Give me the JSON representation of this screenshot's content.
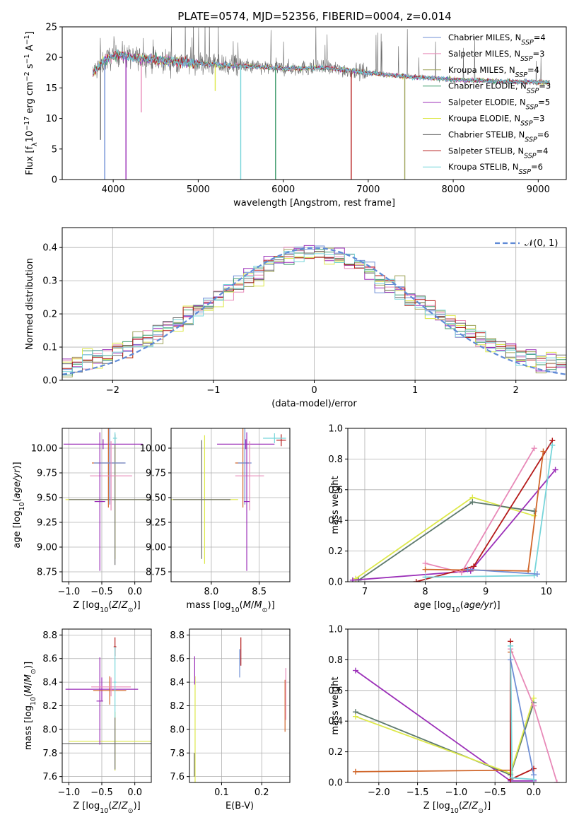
{
  "figure_title": "PLATE=0574, MJD=52356, FIBERID=0004, z=0.014",
  "palette": [
    "#6f8fd6",
    "#e889b8",
    "#9ea35a",
    "#3d9a6a",
    "#9b2fb8",
    "#dde84a",
    "#6b6b6b",
    "#b51a1a",
    "#77d5da"
  ],
  "chart_data": [
    {
      "id": "spectrum",
      "type": "line",
      "title": "PLATE=0574, MJD=52356, FIBERID=0004, z=0.014",
      "xlabel": "wavelength [Angstrom, rest frame]",
      "ylabel": "Flux [f_λ10^-17 erg cm^-2 s^-1 A^-1]",
      "xlim": [
        3400,
        9330
      ],
      "ylim": [
        0,
        25
      ],
      "xticks": [
        4000,
        5000,
        6000,
        7000,
        8000,
        9000
      ],
      "yticks": [
        0,
        5,
        10,
        15,
        20,
        25
      ],
      "legend_position": "top-right",
      "legend": [
        {
          "label": "Chabrier MILES, N",
          "sub": "SSP",
          "tail": "=4"
        },
        {
          "label": "Salpeter MILES, N",
          "sub": "SSP",
          "tail": "=3"
        },
        {
          "label": "Kroupa MILES, N",
          "sub": "SSP",
          "tail": "=4"
        },
        {
          "label": "Chabrier ELODIE, N",
          "sub": "SSP",
          "tail": "=3"
        },
        {
          "label": "Salpeter ELODIE, N",
          "sub": "SSP",
          "tail": "=5"
        },
        {
          "label": "Kroupa ELODIE, N",
          "sub": "SSP",
          "tail": "=3"
        },
        {
          "label": "Chabrier STELIB, N",
          "sub": "SSP",
          "tail": "=6"
        },
        {
          "label": "Salpeter STELIB, N",
          "sub": "SSP",
          "tail": "=4"
        },
        {
          "label": "Kroupa STELIB, N",
          "sub": "SSP",
          "tail": "=6"
        }
      ],
      "wavelength_range": [
        3760,
        9140
      ],
      "continuum": [
        [
          3760,
          17.5
        ],
        [
          3900,
          19.5
        ],
        [
          4050,
          20.5
        ],
        [
          4300,
          19.8
        ],
        [
          4600,
          19.5
        ],
        [
          5000,
          19.0
        ],
        [
          5500,
          18.6
        ],
        [
          6000,
          18.2
        ],
        [
          6500,
          18.3
        ],
        [
          7000,
          17.5
        ],
        [
          7500,
          16.8
        ],
        [
          8000,
          16.4
        ],
        [
          8500,
          16.1
        ],
        [
          9140,
          15.9
        ]
      ],
      "dips": [
        {
          "x": 3900,
          "to": 0
        },
        {
          "x": 4150,
          "to": 0
        },
        {
          "x": 5500,
          "to": 0
        },
        {
          "x": 5910,
          "to": 0
        },
        {
          "x": 6800,
          "to": 0
        },
        {
          "x": 7430,
          "to": 0
        },
        {
          "x": 3850,
          "to": 6.5
        },
        {
          "x": 4330,
          "to": 11
        },
        {
          "x": 5200,
          "to": 14.5
        }
      ]
    },
    {
      "id": "residuals",
      "type": "line",
      "xlabel": "(data-model)/error",
      "ylabel": "Normed distribution",
      "xlim": [
        -2.5,
        2.5
      ],
      "ylim": [
        0,
        0.46
      ],
      "xticks": [
        -2,
        -1,
        0,
        1,
        2
      ],
      "yticks": [
        0.0,
        0.1,
        0.2,
        0.3,
        0.4
      ],
      "grid": true,
      "legend_position": "top-right",
      "reference_curve": {
        "label": "𝒩(0, 1)",
        "mean": 0,
        "sigma": 1,
        "color": "#5f8ad6"
      }
    },
    {
      "id": "age-vs-Z",
      "type": "scatter",
      "xlabel": "Z [log10(Z/Z⊙)]",
      "ylabel": "age  [log10(age/yr)]",
      "xlim": [
        -1.1,
        0.25
      ],
      "ylim": [
        8.65,
        10.2
      ],
      "xticks": [
        -1.0,
        -0.5,
        0.0
      ],
      "yticks": [
        8.75,
        9.0,
        9.25,
        9.5,
        9.75,
        10.0
      ],
      "grid": true,
      "points": [
        {
          "x": -0.3,
          "y": 9.48,
          "xerr": 0.75,
          "yerr": 0.6,
          "color": "#dde84a"
        },
        {
          "x": -0.3,
          "y": 9.48,
          "xerr": 0.7,
          "yerr": 0.66,
          "color": "#6b6b6b"
        },
        {
          "x": -0.48,
          "y": 10.04,
          "xerr": 0.6,
          "yerr": 0.05,
          "color": "#9b2fb8"
        },
        {
          "x": -0.4,
          "y": 9.85,
          "xerr": 0.25,
          "yerr": 0.45,
          "color": "#d0662a"
        },
        {
          "x": -0.38,
          "y": 9.85,
          "xerr": 0.24,
          "yerr": 0.42,
          "color": "#6f8fd6"
        },
        {
          "x": -0.36,
          "y": 9.72,
          "xerr": 0.32,
          "yerr": 0.35,
          "color": "#e889b8"
        },
        {
          "x": -0.53,
          "y": 9.46,
          "xerr": 0.08,
          "yerr": 0.7,
          "color": "#9b2fb8"
        },
        {
          "x": -0.3,
          "y": 10.1,
          "xerr": 0.03,
          "yerr": 0.06,
          "color": "#77d5da"
        }
      ]
    },
    {
      "id": "age-vs-mass",
      "type": "scatter",
      "xlabel": "mass [log10(M/M⊙)]",
      "ylabel": "",
      "xlim": [
        7.58,
        8.82
      ],
      "ylim": [
        8.65,
        10.2
      ],
      "xticks": [
        8.0,
        8.5
      ],
      "yticks": [
        8.75,
        9.0,
        9.25,
        9.5,
        9.75,
        10.0
      ],
      "grid": true,
      "points": [
        {
          "x": 7.93,
          "y": 9.48,
          "xerr": 0.35,
          "yerr": 0.65,
          "color": "#dde84a"
        },
        {
          "x": 7.9,
          "y": 9.48,
          "xerr": 0.3,
          "yerr": 0.6,
          "color": "#6b6b6b"
        },
        {
          "x": 8.36,
          "y": 10.04,
          "xerr": 0.3,
          "yerr": 0.05,
          "color": "#9b2fb8"
        },
        {
          "x": 8.33,
          "y": 9.85,
          "xerr": 0.08,
          "yerr": 0.45,
          "color": "#d0662a"
        },
        {
          "x": 8.35,
          "y": 9.85,
          "xerr": 0.07,
          "yerr": 0.42,
          "color": "#6f8fd6"
        },
        {
          "x": 8.4,
          "y": 9.72,
          "xerr": 0.15,
          "yerr": 0.35,
          "color": "#e889b8"
        },
        {
          "x": 8.37,
          "y": 9.46,
          "xerr": 0.03,
          "yerr": 0.7,
          "color": "#9b2fb8"
        },
        {
          "x": 8.73,
          "y": 10.08,
          "xerr": 0.05,
          "yerr": 0.06,
          "color": "#b51a1a"
        },
        {
          "x": 8.66,
          "y": 10.1,
          "xerr": 0.12,
          "yerr": 0.05,
          "color": "#77d5da"
        }
      ]
    },
    {
      "id": "mass-weight-vs-age",
      "type": "line",
      "xlabel": "age  [log10(age/yr)]",
      "ylabel": "mass weight",
      "xlim": [
        6.72,
        10.33
      ],
      "ylim": [
        0,
        1.0
      ],
      "xticks": [
        7,
        8,
        9,
        10
      ],
      "yticks": [
        0.0,
        0.2,
        0.4,
        0.6,
        0.8,
        1.0
      ],
      "grid": true,
      "series": [
        {
          "color": "#dde84a",
          "points": [
            [
              6.85,
              0.02
            ],
            [
              8.78,
              0.55
            ],
            [
              9.8,
              0.43
            ]
          ]
        },
        {
          "color": "#5e7a6e",
          "points": [
            [
              6.9,
              0.01
            ],
            [
              8.78,
              0.52
            ],
            [
              9.8,
              0.46
            ]
          ]
        },
        {
          "color": "#9b2fb8",
          "points": [
            [
              6.8,
              0.01
            ],
            [
              8.75,
              0.07
            ],
            [
              10.15,
              0.73
            ]
          ]
        },
        {
          "color": "#b51a1a",
          "points": [
            [
              7.85,
              0.0
            ],
            [
              8.8,
              0.1
            ],
            [
              10.1,
              0.92
            ]
          ]
        },
        {
          "color": "#e889b8",
          "points": [
            [
              8.0,
              0.12
            ],
            [
              8.6,
              0.06
            ],
            [
              9.8,
              0.87
            ]
          ]
        },
        {
          "color": "#d0662a",
          "points": [
            [
              8.0,
              0.08
            ],
            [
              9.7,
              0.07
            ],
            [
              9.95,
              0.85
            ]
          ]
        },
        {
          "color": "#77d5da",
          "points": [
            [
              8.0,
              0.03
            ],
            [
              9.8,
              0.04
            ],
            [
              10.1,
              0.89
            ]
          ]
        },
        {
          "color": "#6f8fd6",
          "points": [
            [
              8.7,
              0.08
            ],
            [
              9.85,
              0.05
            ]
          ]
        }
      ]
    },
    {
      "id": "mass-vs-Z",
      "type": "scatter",
      "xlabel": "Z [log10(Z/Z⊙)]",
      "ylabel": "mass [log10(M/M⊙)]",
      "xlim": [
        -1.1,
        0.25
      ],
      "ylim": [
        7.55,
        8.85
      ],
      "xticks": [
        -1.0,
        -0.5,
        0.0
      ],
      "yticks": [
        7.6,
        7.8,
        8.0,
        8.2,
        8.4,
        8.6,
        8.8
      ],
      "grid": true,
      "points": [
        {
          "x": -0.3,
          "y": 7.9,
          "xerr": 0.7,
          "yerr": 0.25,
          "color": "#dde84a"
        },
        {
          "x": -0.3,
          "y": 7.88,
          "xerr": 0.8,
          "yerr": 0.22,
          "color": "#6b6b6b"
        },
        {
          "x": -0.5,
          "y": 8.34,
          "xerr": 0.55,
          "yerr": 0.1,
          "color": "#9b2fb8"
        },
        {
          "x": -0.53,
          "y": 8.24,
          "xerr": 0.05,
          "yerr": 0.37,
          "color": "#9b2fb8"
        },
        {
          "x": -0.38,
          "y": 8.33,
          "xerr": 0.25,
          "yerr": 0.12,
          "color": "#d0662a"
        },
        {
          "x": -0.36,
          "y": 8.36,
          "xerr": 0.3,
          "yerr": 0.08,
          "color": "#e889b8"
        },
        {
          "x": -0.3,
          "y": 8.7,
          "xerr": 0.02,
          "yerr": 0.08,
          "color": "#b51a1a"
        },
        {
          "x": -0.3,
          "y": 8.4,
          "xerr": 0.02,
          "yerr": 0.3,
          "color": "#77d5da"
        }
      ]
    },
    {
      "id": "mass-vs-EBV",
      "type": "scatter",
      "xlabel": "E(B-V)",
      "ylabel": "",
      "xlim": [
        0.02,
        0.27
      ],
      "ylim": [
        7.55,
        8.85
      ],
      "xticks": [
        0.1,
        0.2
      ],
      "yticks": [
        7.6,
        7.8,
        8.0,
        8.2,
        8.4,
        8.6,
        8.8
      ],
      "grid": true,
      "points": [
        {
          "x": 0.034,
          "y": 8.0,
          "xerr": 0,
          "yerr": 0.45,
          "color": "#dde84a"
        },
        {
          "x": 0.032,
          "y": 7.7,
          "xerr": 0,
          "yerr": 0.1,
          "color": "#6b6b6b"
        },
        {
          "x": 0.033,
          "y": 8.5,
          "xerr": 0,
          "yerr": 0.12,
          "color": "#9b2fb8"
        },
        {
          "x": 0.145,
          "y": 8.56,
          "xerr": 0,
          "yerr": 0.12,
          "color": "#6f8fd6"
        },
        {
          "x": 0.148,
          "y": 8.66,
          "xerr": 0,
          "yerr": 0.12,
          "color": "#b51a1a"
        },
        {
          "x": 0.258,
          "y": 8.2,
          "xerr": 0,
          "yerr": 0.22,
          "color": "#d0662a"
        },
        {
          "x": 0.26,
          "y": 8.3,
          "xerr": 0,
          "yerr": 0.22,
          "color": "#e889b8"
        }
      ]
    },
    {
      "id": "mass-weight-vs-Z",
      "type": "line",
      "xlabel": "Z [log10(Z/Z⊙)]",
      "ylabel": "mass weight",
      "xlim": [
        -2.4,
        0.42
      ],
      "ylim": [
        0,
        1.0
      ],
      "xticks": [
        -2.0,
        -1.5,
        -1.0,
        -0.5,
        0.0
      ],
      "yticks": [
        0.0,
        0.2,
        0.4,
        0.6,
        0.8,
        1.0
      ],
      "grid": true,
      "series": [
        {
          "color": "#9b2fb8",
          "points": [
            [
              -2.3,
              0.73
            ],
            [
              -0.3,
              0.01
            ],
            [
              0.0,
              0.01
            ]
          ]
        },
        {
          "color": "#5e7a6e",
          "points": [
            [
              -2.3,
              0.46
            ],
            [
              -0.3,
              0.05
            ],
            [
              0.0,
              0.52
            ]
          ]
        },
        {
          "color": "#dde84a",
          "points": [
            [
              -2.3,
              0.43
            ],
            [
              -0.3,
              0.06
            ],
            [
              0.0,
              0.55
            ]
          ]
        },
        {
          "color": "#d0662a",
          "points": [
            [
              -2.3,
              0.07
            ],
            [
              -0.3,
              0.08
            ],
            [
              -0.3,
              0.85
            ]
          ]
        },
        {
          "color": "#e889b8",
          "points": [
            [
              -0.3,
              0.87
            ],
            [
              0.0,
              0.5
            ],
            [
              0.3,
              0.0
            ]
          ]
        },
        {
          "color": "#b51a1a",
          "points": [
            [
              -0.3,
              0.92
            ],
            [
              -0.3,
              0.02
            ],
            [
              0.0,
              0.09
            ]
          ]
        },
        {
          "color": "#77d5da",
          "points": [
            [
              -0.3,
              0.89
            ],
            [
              -0.28,
              0.03
            ],
            [
              0.0,
              0.02
            ]
          ]
        },
        {
          "color": "#6f8fd6",
          "points": [
            [
              -0.3,
              0.8
            ],
            [
              0.0,
              0.05
            ]
          ]
        }
      ]
    }
  ]
}
